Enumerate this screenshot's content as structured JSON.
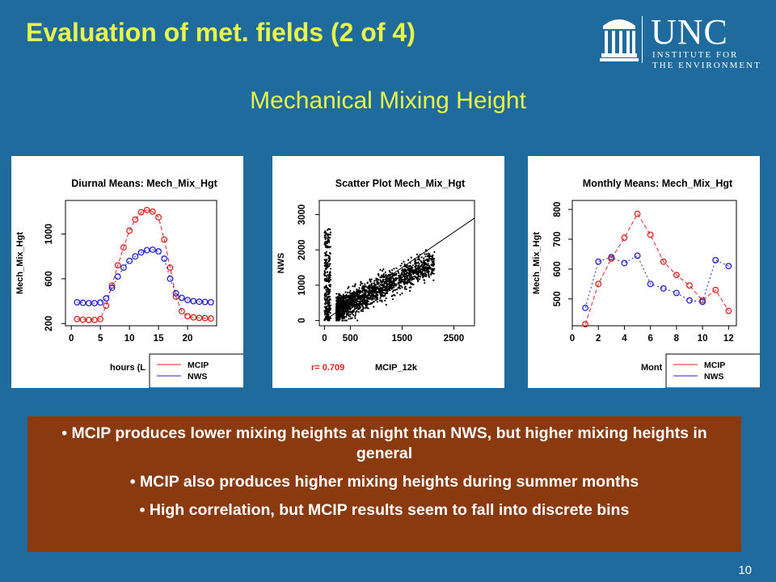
{
  "slide": {
    "title": "Evaluation of met. fields (2 of 4)",
    "subtitle": "Mechanical Mixing Height",
    "page_number": "10",
    "logo": {
      "name": "UNC",
      "line1": "INSTITUTE FOR",
      "line2": "THE ENVIRONMENT"
    },
    "bullets": [
      "• MCIP produces lower mixing heights at night than NWS, but higher mixing heights in general",
      "• MCIP also produces higher mixing heights during summer months",
      "• High correlation, but MCIP results seem to fall into discrete bins"
    ],
    "colors": {
      "background": "#1f6b9e",
      "title": "#e8f54a",
      "bullet_box": "#8b3a0f",
      "mcip": "#dd2222",
      "nws": "#2222cc"
    }
  },
  "chart_data": [
    {
      "type": "line",
      "title": "Diurnal Means: Mech_Mix_Hgt",
      "xlabel": "hours (L",
      "ylabel": "Mech_Mix_Hgt",
      "xlim": [
        -1,
        25
      ],
      "ylim": [
        180,
        1300
      ],
      "xticks": [
        0,
        5,
        10,
        15,
        20
      ],
      "yticks": [
        200,
        600,
        1000
      ],
      "legend_position": "bottom-right",
      "series": [
        {
          "name": "MCIP",
          "x": [
            1,
            2,
            3,
            4,
            5,
            6,
            7,
            8,
            9,
            10,
            11,
            12,
            13,
            14,
            15,
            16,
            17,
            18,
            19,
            20,
            21,
            22,
            23,
            24
          ],
          "values": [
            240,
            235,
            232,
            232,
            240,
            360,
            540,
            720,
            880,
            1030,
            1130,
            1195,
            1215,
            1200,
            1150,
            950,
            700,
            440,
            310,
            265,
            255,
            250,
            248,
            245
          ]
        },
        {
          "name": "NWS",
          "x": [
            1,
            2,
            3,
            4,
            5,
            6,
            7,
            8,
            9,
            10,
            11,
            12,
            13,
            14,
            15,
            16,
            17,
            18,
            19,
            20,
            21,
            22,
            23,
            24
          ],
          "values": [
            390,
            385,
            382,
            382,
            388,
            425,
            520,
            620,
            700,
            760,
            800,
            835,
            855,
            860,
            845,
            780,
            600,
            470,
            430,
            410,
            400,
            395,
            393,
            390
          ]
        }
      ]
    },
    {
      "type": "scatter",
      "title": "Scatter Plot Mech_Mix_Hgt",
      "xlabel": "MCIP_12k",
      "ylabel": "NWS",
      "annotation": "r= 0.709",
      "xlim": [
        -100,
        2900
      ],
      "ylim": [
        -150,
        3400
      ],
      "xticks": [
        0,
        500,
        1500,
        2500
      ],
      "yticks": [
        0,
        1000,
        2000,
        3000
      ],
      "reference_line": [
        [
          0,
          0
        ],
        [
          2900,
          2900
        ]
      ]
    },
    {
      "type": "line",
      "title": "Monthly Means: Mech_Mix_Hgt",
      "xlabel": "Mont",
      "ylabel": "Mech_Mix_Hgt",
      "xlim": [
        0,
        12.6
      ],
      "ylim": [
        410,
        830
      ],
      "xticks": [
        0,
        2,
        4,
        6,
        8,
        10,
        12
      ],
      "yticks": [
        500,
        600,
        700,
        800
      ],
      "legend_position": "bottom-right",
      "series": [
        {
          "name": "MCIP",
          "x": [
            1,
            2,
            3,
            4,
            5,
            6,
            7,
            8,
            9,
            10,
            11,
            12
          ],
          "values": [
            415,
            550,
            635,
            705,
            785,
            715,
            625,
            580,
            545,
            495,
            530,
            460
          ]
        },
        {
          "name": "NWS",
          "x": [
            1,
            2,
            3,
            4,
            5,
            6,
            7,
            8,
            9,
            10,
            11,
            12
          ],
          "values": [
            470,
            625,
            640,
            620,
            645,
            550,
            535,
            520,
            495,
            490,
            630,
            610
          ]
        }
      ]
    }
  ]
}
